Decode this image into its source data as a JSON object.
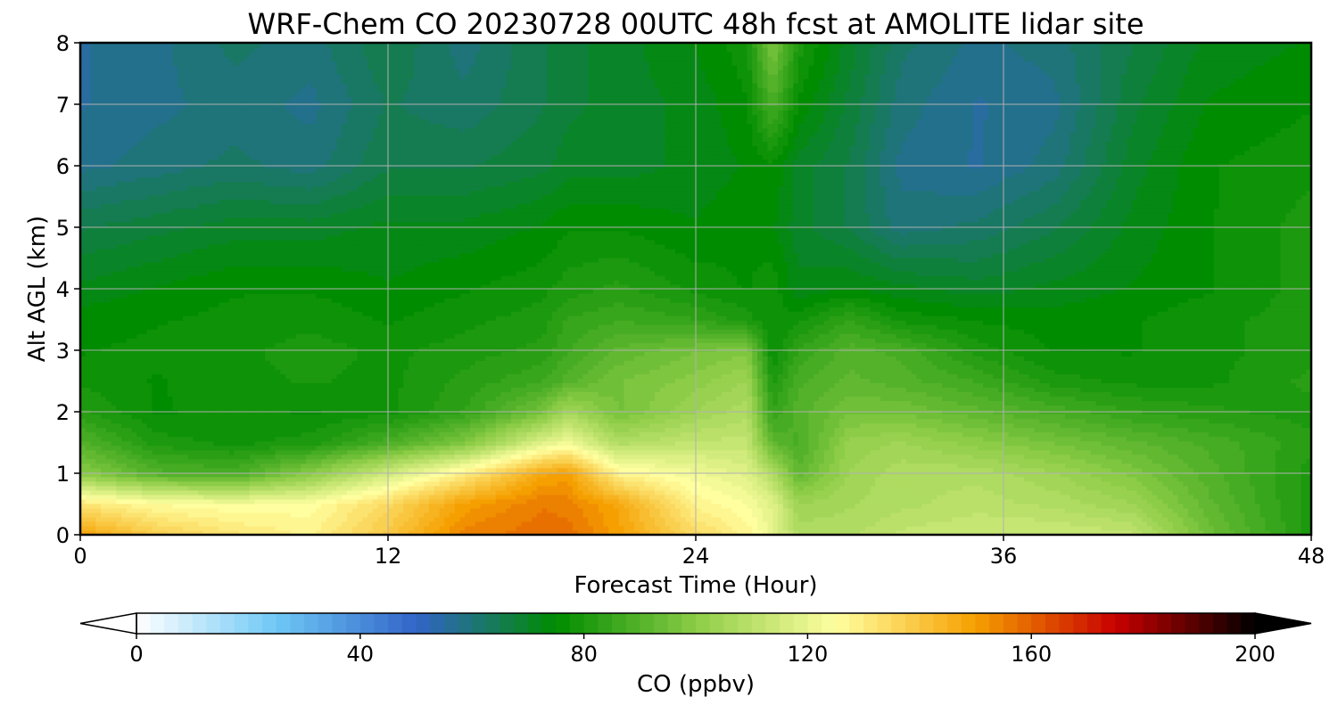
{
  "chart_data": {
    "type": "heatmap",
    "title": "WRF-Chem CO  20230728 00UTC 48h fcst at AMOLITE lidar site",
    "xlabel": "Forecast Time (Hour)",
    "ylabel": "Alt AGL (km)",
    "xlim": [
      0,
      48
    ],
    "ylim": [
      0,
      8
    ],
    "x_ticks": [
      "0",
      "12",
      "24",
      "36",
      "48"
    ],
    "y_ticks": [
      "0",
      "1",
      "2",
      "3",
      "4",
      "5",
      "6",
      "7",
      "8"
    ],
    "grid": true,
    "colorbar": {
      "label": "CO  (ppbv)",
      "range": [
        0,
        200
      ],
      "ticks": [
        "0",
        "40",
        "80",
        "120",
        "160",
        "200"
      ],
      "extend": "both",
      "colors": [
        "#ffffff",
        "#6ec8f5",
        "#3264c8",
        "#008c00",
        "#8ccc46",
        "#ffffa0",
        "#f5a000",
        "#c80000",
        "#000000"
      ]
    },
    "x": [
      0,
      3,
      6,
      9,
      12,
      15,
      18,
      19,
      21,
      24,
      26,
      27,
      28,
      30,
      32,
      35,
      38,
      41,
      44,
      48
    ],
    "y": [
      0,
      0.5,
      1,
      1.5,
      2,
      2.5,
      3,
      3.5,
      4,
      5,
      6,
      7,
      8
    ],
    "z": [
      [
        150,
        138,
        132,
        128,
        140,
        155,
        158,
        158,
        150,
        135,
        128,
        120,
        108,
        108,
        112,
        114,
        114,
        112,
        95,
        80
      ],
      [
        132,
        126,
        124,
        125,
        135,
        150,
        156,
        155,
        148,
        128,
        124,
        118,
        104,
        106,
        108,
        110,
        108,
        104,
        92,
        80
      ],
      [
        100,
        90,
        88,
        100,
        115,
        130,
        148,
        150,
        128,
        122,
        118,
        108,
        92,
        104,
        108,
        108,
        104,
        98,
        90,
        80
      ],
      [
        90,
        80,
        78,
        80,
        88,
        98,
        118,
        122,
        108,
        112,
        112,
        92,
        88,
        102,
        104,
        100,
        96,
        92,
        88,
        82
      ],
      [
        82,
        76,
        77,
        76,
        78,
        84,
        96,
        106,
        96,
        104,
        108,
        84,
        90,
        96,
        96,
        92,
        88,
        84,
        82,
        80
      ],
      [
        78,
        76,
        78,
        79,
        78,
        82,
        86,
        90,
        96,
        100,
        104,
        80,
        88,
        92,
        90,
        86,
        80,
        78,
        78,
        82
      ],
      [
        76,
        77,
        78,
        80,
        78,
        80,
        82,
        86,
        92,
        96,
        98,
        76,
        84,
        90,
        88,
        80,
        76,
        76,
        78,
        80
      ],
      [
        75,
        76,
        77,
        78,
        76,
        78,
        80,
        84,
        86,
        84,
        80,
        76,
        78,
        84,
        78,
        76,
        75,
        76,
        78,
        80
      ],
      [
        72,
        74,
        76,
        76,
        74,
        76,
        78,
        80,
        82,
        78,
        76,
        78,
        72,
        74,
        72,
        70,
        72,
        74,
        76,
        80
      ],
      [
        66,
        68,
        70,
        70,
        72,
        72,
        74,
        76,
        76,
        74,
        76,
        74,
        70,
        66,
        60,
        62,
        66,
        72,
        76,
        80
      ],
      [
        58,
        60,
        62,
        60,
        66,
        66,
        68,
        70,
        70,
        72,
        74,
        76,
        70,
        66,
        58,
        56,
        60,
        70,
        76,
        78
      ],
      [
        56,
        58,
        60,
        58,
        64,
        62,
        66,
        68,
        70,
        72,
        76,
        88,
        76,
        68,
        60,
        56,
        58,
        68,
        74,
        76
      ],
      [
        56,
        58,
        62,
        60,
        66,
        60,
        66,
        68,
        70,
        74,
        78,
        98,
        80,
        70,
        62,
        58,
        60,
        66,
        72,
        74
      ]
    ]
  }
}
